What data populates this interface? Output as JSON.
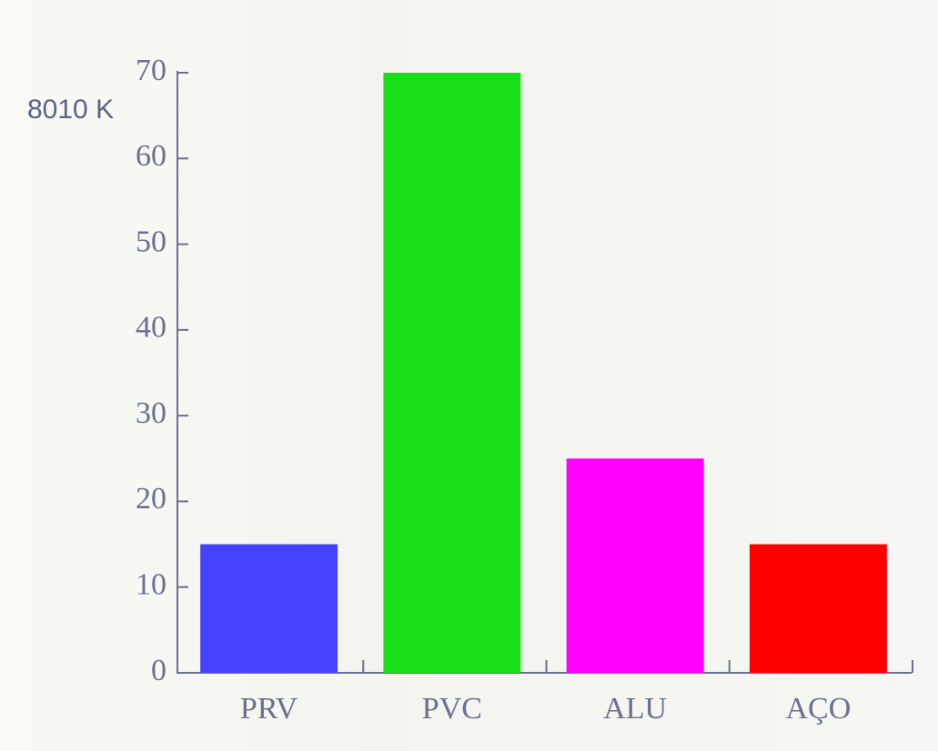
{
  "chart_data": {
    "type": "bar",
    "y_label": "8010 K",
    "categories": [
      "PRV",
      "PVC",
      "ALU",
      "AÇO"
    ],
    "values": [
      15,
      70,
      25,
      15
    ],
    "colors": [
      "#4444ff",
      "#18e018",
      "#ff00ff",
      "#ff0000"
    ],
    "ylim": [
      0,
      70
    ],
    "yticks": [
      0,
      10,
      20,
      30,
      40,
      50,
      60,
      70
    ],
    "grid": false
  }
}
